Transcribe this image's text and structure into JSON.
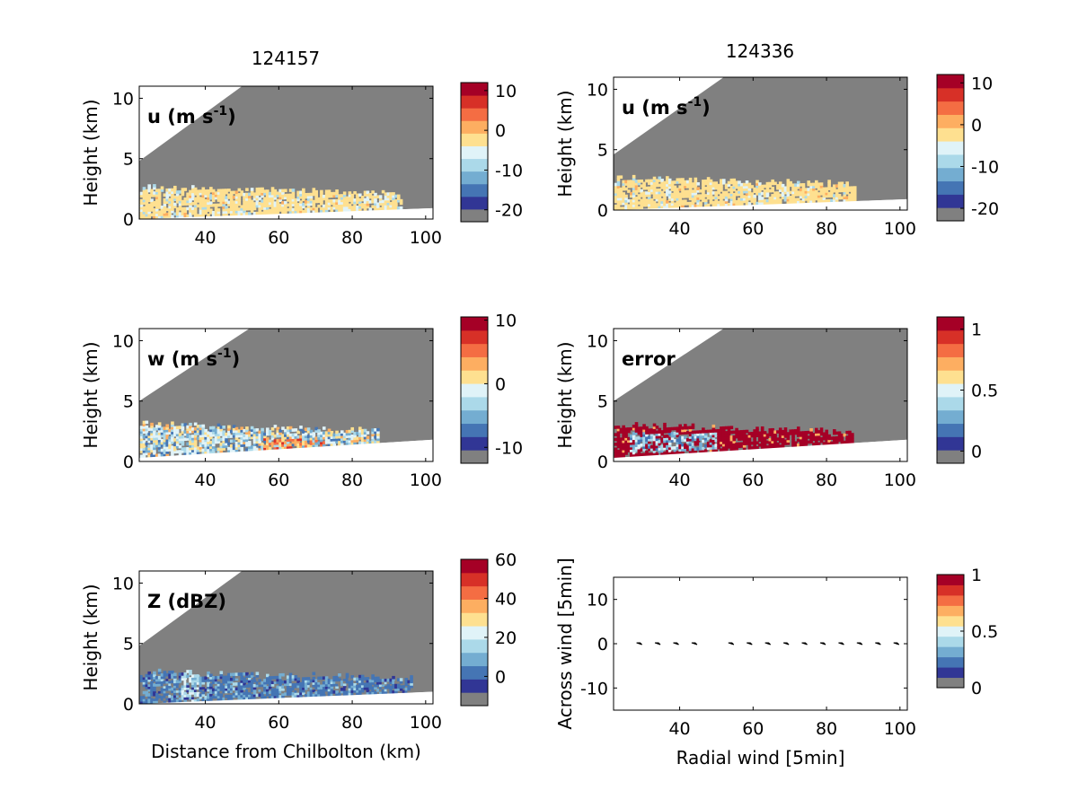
{
  "figure": {
    "left_title": "124157",
    "right_title": "124336"
  },
  "chart_data": [
    {
      "id": "u1",
      "type": "heatmap",
      "label": "u (m s",
      "label_sup": "-1",
      "label_tail": ")",
      "ylabel": "Height (km)",
      "xlabel": "",
      "xlim": [
        22,
        102
      ],
      "ylim": [
        0,
        11
      ],
      "xticks": [
        40,
        60,
        80,
        100
      ],
      "yticks": [
        0,
        5,
        10
      ],
      "cbar_ticks": [
        {
          "v": 10,
          "label": "10"
        },
        {
          "v": 0,
          "label": "0"
        },
        {
          "v": -10,
          "label": "-10"
        },
        {
          "v": -20,
          "label": "-20"
        }
      ],
      "cbar_range": [
        -23,
        12
      ],
      "beam": {
        "x0": 22,
        "y_top_start": 4.8,
        "y_top_end_x": 50,
        "ground_start": 0,
        "ground_end": 0.9
      },
      "echo": {
        "x_end": 93,
        "y_low": 0.3,
        "y_high": 2.6,
        "dominant_color": "#fed98e"
      }
    },
    {
      "id": "u2",
      "type": "heatmap",
      "label": "u (m s",
      "label_sup": "-1",
      "label_tail": ")",
      "ylabel": "Height (km)",
      "xlabel": "",
      "xlim": [
        22,
        102
      ],
      "ylim": [
        0,
        11
      ],
      "xticks": [
        40,
        60,
        80,
        100
      ],
      "yticks": [
        0,
        5,
        10
      ],
      "cbar_ticks": [
        {
          "v": 10,
          "label": "10"
        },
        {
          "v": 0,
          "label": "0"
        },
        {
          "v": -10,
          "label": "-10"
        },
        {
          "v": -20,
          "label": "-20"
        }
      ],
      "cbar_range": [
        -23,
        12
      ],
      "beam": {
        "x0": 22,
        "y_top_start": 4.6,
        "y_top_end_x": 52,
        "ground_start": 0,
        "ground_end": 0.9
      },
      "echo": {
        "x_end": 88,
        "y_low": 0.3,
        "y_high": 2.6,
        "dominant_color": "#fed98e"
      }
    },
    {
      "id": "w",
      "type": "heatmap",
      "label": "w (m s",
      "label_sup": "-1",
      "label_tail": ")",
      "ylabel": "Height (km)",
      "xlabel": "",
      "xlim": [
        22,
        102
      ],
      "ylim": [
        0,
        11
      ],
      "xticks": [
        40,
        60,
        80,
        100
      ],
      "yticks": [
        0,
        5,
        10
      ],
      "cbar_ticks": [
        {
          "v": 10,
          "label": "10"
        },
        {
          "v": 0,
          "label": "0"
        },
        {
          "v": -10,
          "label": "-10"
        }
      ],
      "cbar_range": [
        -12.5,
        10.5
      ],
      "beam": {
        "x0": 22,
        "y_top_start": 5.0,
        "y_top_end_x": 52,
        "ground_start": 0.3,
        "ground_end": 1.8
      },
      "echo": {
        "x_end": 87,
        "y_low": 0.6,
        "y_high": 3.0,
        "dominant_color": "#e0f3f8"
      }
    },
    {
      "id": "err",
      "type": "heatmap",
      "label": "error",
      "label_sup": "",
      "label_tail": "",
      "ylabel": "Height (km)",
      "xlabel": "",
      "xlim": [
        22,
        102
      ],
      "ylim": [
        0,
        11
      ],
      "xticks": [
        40,
        60,
        80,
        100
      ],
      "yticks": [
        0,
        5,
        10
      ],
      "cbar_ticks": [
        {
          "v": 1,
          "label": "1"
        },
        {
          "v": 0.5,
          "label": "0.5"
        },
        {
          "v": 0,
          "label": "0"
        }
      ],
      "cbar_range": [
        -0.1,
        1.1
      ],
      "beam": {
        "x0": 22,
        "y_top_start": 5.0,
        "y_top_end_x": 52,
        "ground_start": 0.3,
        "ground_end": 1.8
      },
      "echo": {
        "x_end": 87,
        "y_low": 0.6,
        "y_high": 3.0,
        "dominant_color": "#a50026"
      }
    },
    {
      "id": "z",
      "type": "heatmap",
      "label": "Z (dBZ)",
      "label_sup": "",
      "label_tail": "",
      "ylabel": "Height (km)",
      "xlabel": "Distance from Chilbolton (km)",
      "xlim": [
        22,
        102
      ],
      "ylim": [
        0,
        11
      ],
      "xticks": [
        40,
        60,
        80,
        100
      ],
      "yticks": [
        0,
        5,
        10
      ],
      "cbar_ticks": [
        {
          "v": 60,
          "label": "60"
        },
        {
          "v": 40,
          "label": "40"
        },
        {
          "v": 20,
          "label": "20"
        },
        {
          "v": 0,
          "label": "0"
        }
      ],
      "cbar_range": [
        -15,
        60
      ],
      "beam": {
        "x0": 22,
        "y_top_start": 4.8,
        "y_top_end_x": 50,
        "ground_start": 0,
        "ground_end": 1.0
      },
      "echo": {
        "x_end": 96,
        "y_low": 0.3,
        "y_high": 2.6,
        "dominant_color": "#4575b4"
      }
    },
    {
      "id": "quiver",
      "type": "scatter",
      "ylabel": "Across wind [5min]",
      "xlabel": "Radial wind [5min]",
      "xlim": [
        22,
        102
      ],
      "ylim": [
        -15,
        15
      ],
      "xticks": [
        40,
        60,
        80,
        100
      ],
      "yticks": [
        -10,
        0,
        10
      ],
      "cbar_ticks": [
        {
          "v": 1,
          "label": "1"
        },
        {
          "v": 0.5,
          "label": "0.5"
        },
        {
          "v": 0,
          "label": "0"
        }
      ],
      "cbar_range": [
        0,
        1
      ],
      "arrows_x": [
        29,
        34,
        39,
        44,
        54,
        59,
        64,
        69,
        74,
        79,
        84,
        89,
        94,
        99
      ],
      "arrows_y": [
        0,
        0,
        0,
        0,
        0,
        0,
        0,
        0,
        0,
        0,
        0,
        0,
        0,
        0
      ]
    }
  ],
  "colors": {
    "cmap": [
      "#808080",
      "#313695",
      "#4575b4",
      "#74add1",
      "#abd9e9",
      "#e0f3f8",
      "#fee090",
      "#fdae61",
      "#f46d43",
      "#d73027",
      "#a50026"
    ],
    "cmap_quiver": [
      "#808080",
      "#313695",
      "#4575b4",
      "#74add1",
      "#abd9e9",
      "#e0f3f8",
      "#fee090",
      "#fdae61",
      "#f46d43",
      "#d73027",
      "#a50026"
    ],
    "mask": "#808080"
  }
}
